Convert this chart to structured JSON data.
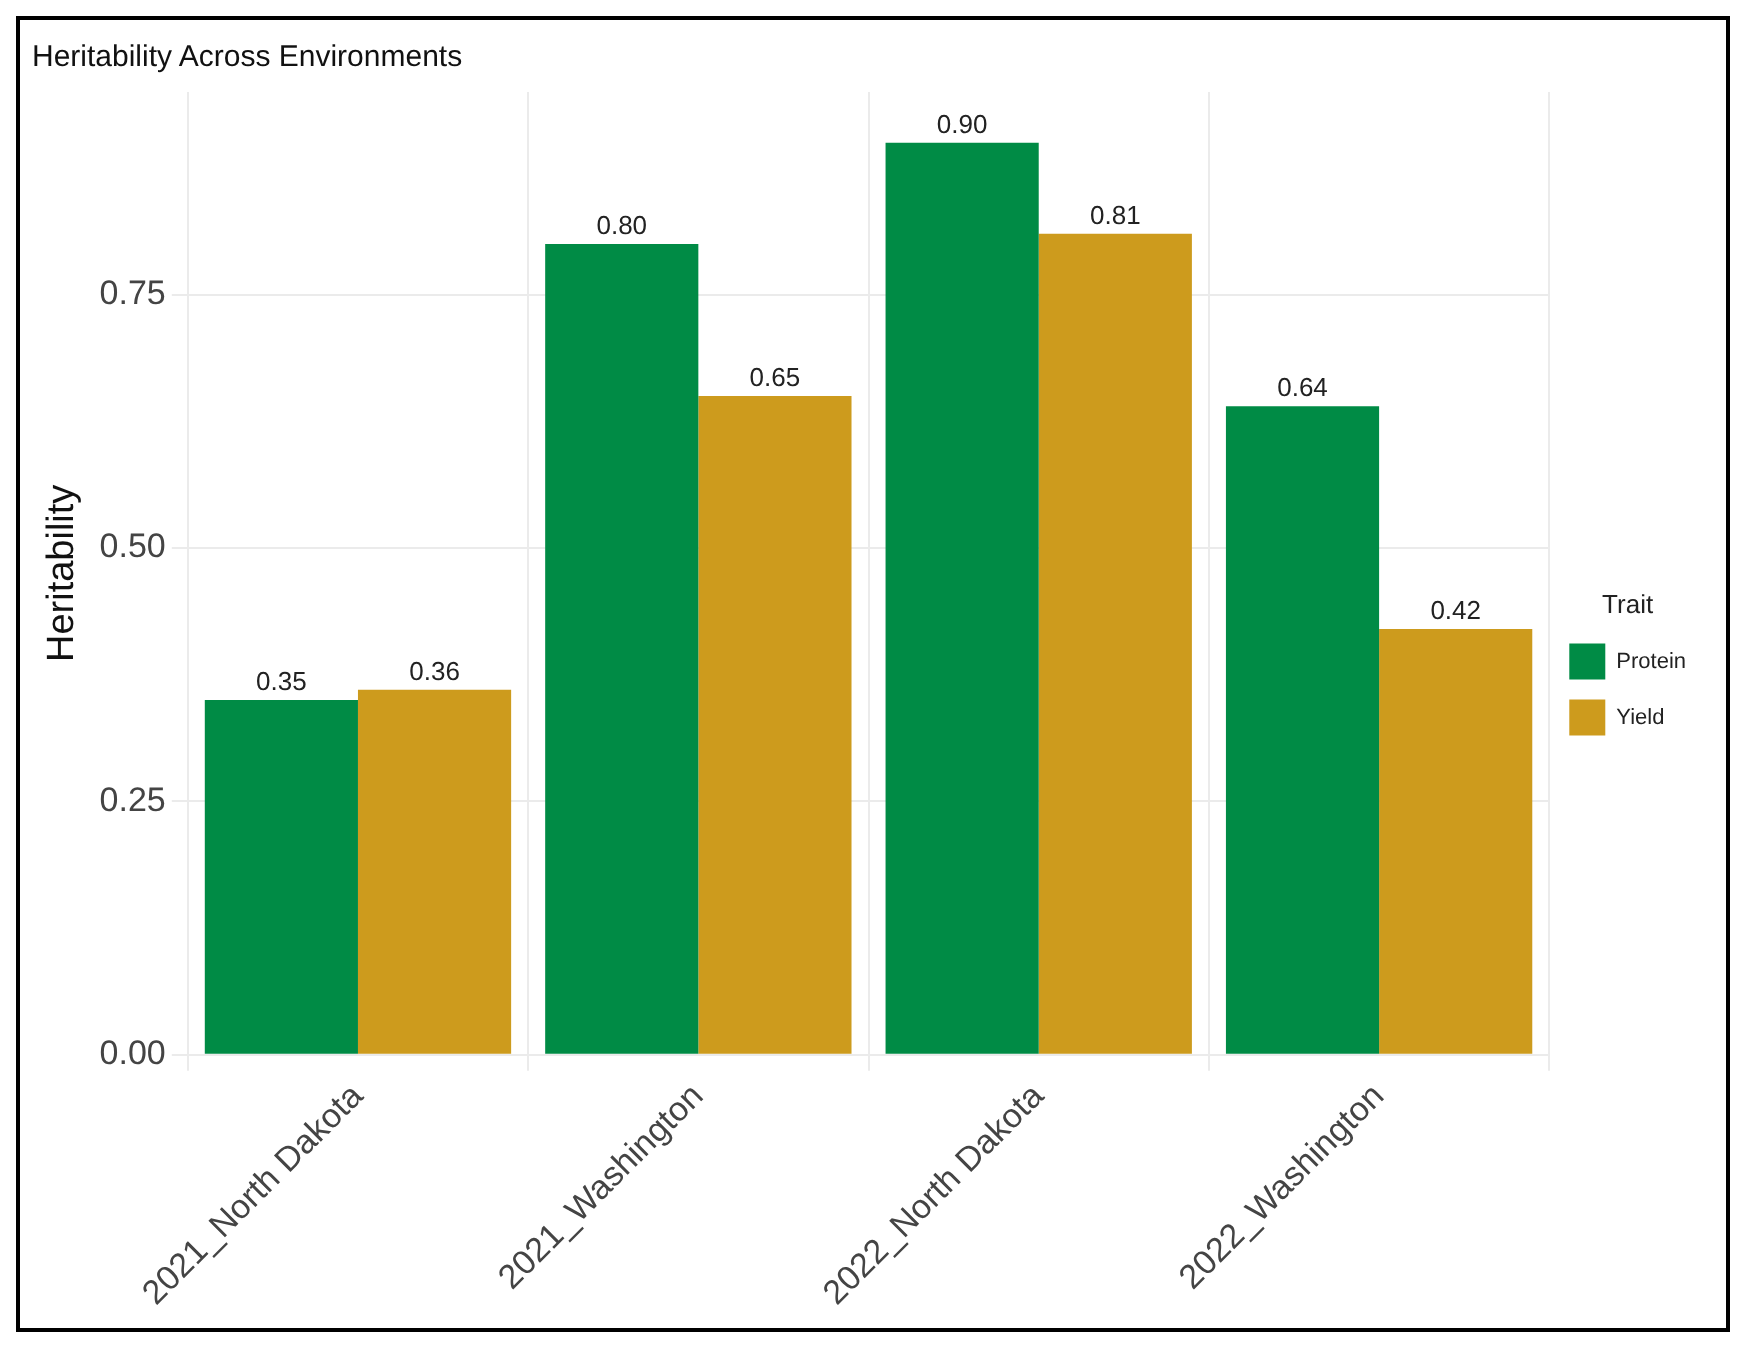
{
  "chart_data": {
    "type": "bar",
    "title": "Heritability Across Environments",
    "ylabel": "Heritability",
    "legend_title": "Trait",
    "categories": [
      "2021_North Dakota",
      "2021_Washington",
      "2022_North Dakota",
      "2022_Washington"
    ],
    "series": [
      {
        "name": "Protein",
        "color": "#008b45",
        "values": [
          0.35,
          0.8,
          0.9,
          0.64
        ],
        "value_labels": [
          "0.35",
          "0.80",
          "0.90",
          "0.64"
        ]
      },
      {
        "name": "Yield",
        "color": "#cd9b1d",
        "values": [
          0.36,
          0.65,
          0.81,
          0.42
        ],
        "value_labels": [
          "0.36",
          "0.65",
          "0.81",
          "0.42"
        ]
      }
    ],
    "ylim": [
      0,
      0.95
    ],
    "yticks": [
      {
        "value": 0,
        "label": "0.00"
      },
      {
        "value": 0.25,
        "label": "0.25"
      },
      {
        "value": 0.5,
        "label": "0.50"
      },
      {
        "value": 0.75,
        "label": "0.75"
      }
    ],
    "grid": true,
    "legend": "right"
  }
}
